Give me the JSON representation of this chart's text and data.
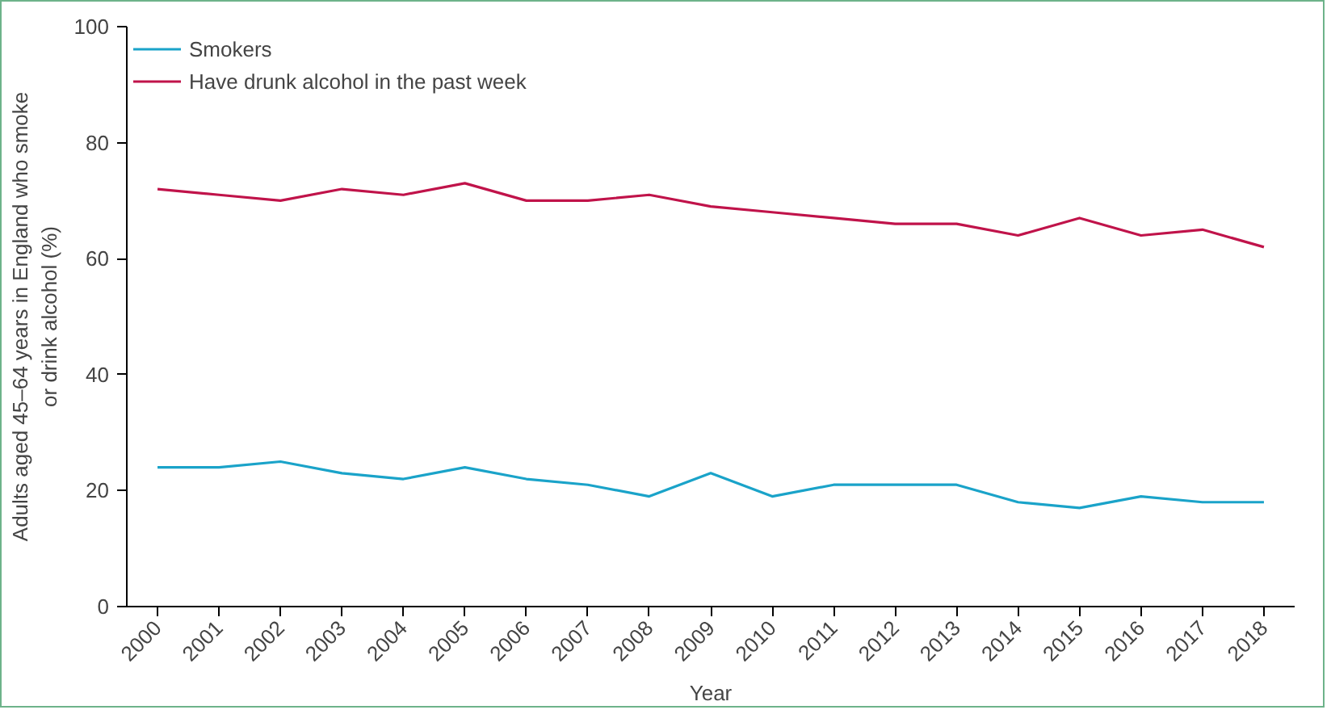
{
  "chart_data": {
    "type": "line",
    "xlabel": "Year",
    "ylabel": "Adults aged 45–64 years in England who smoke\nor drink alcohol (%)",
    "categories": [
      "2000",
      "2001",
      "2002",
      "2003",
      "2004",
      "2005",
      "2006",
      "2007",
      "2008",
      "2009",
      "2010",
      "2011",
      "2012",
      "2013",
      "2014",
      "2015",
      "2016",
      "2017",
      "2018"
    ],
    "series": [
      {
        "name": "Smokers",
        "color": "#1aa3c9",
        "values": [
          24,
          24,
          25,
          23,
          22,
          24,
          22,
          21,
          19,
          23,
          19,
          21,
          21,
          21,
          18,
          17,
          19,
          18,
          18
        ]
      },
      {
        "name": "Have drunk alcohol in the past week",
        "color": "#c0134a",
        "values": [
          72,
          71,
          70,
          72,
          71,
          73,
          70,
          70,
          71,
          69,
          68,
          67,
          66,
          66,
          64,
          67,
          64,
          65,
          62
        ]
      }
    ],
    "ylim": [
      0,
      100
    ],
    "yticks": [
      0,
      20,
      40,
      60,
      80,
      100
    ],
    "grid": false,
    "legend": "top left",
    "marker": "none",
    "line_style": "solid"
  }
}
